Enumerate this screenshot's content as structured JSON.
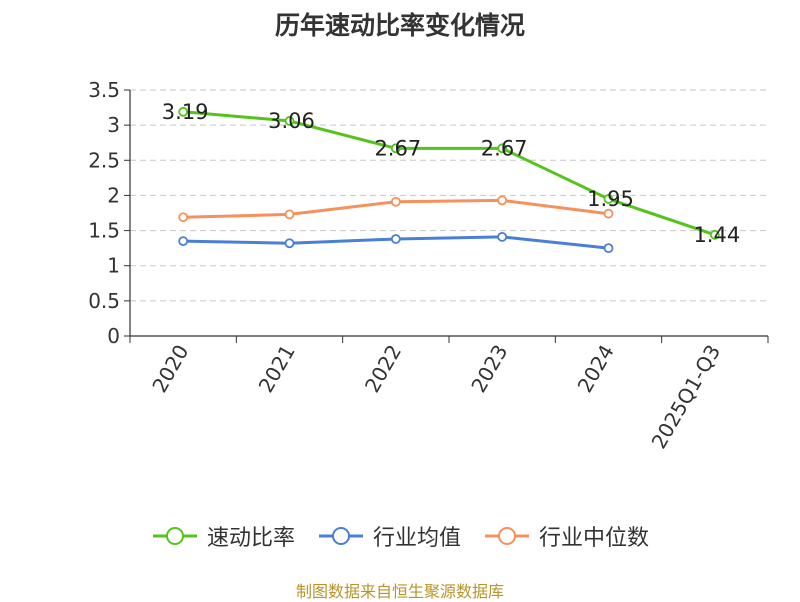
{
  "chart_data": {
    "type": "line",
    "title": "历年速动比率变化情况",
    "categories": [
      "2020",
      "2021",
      "2022",
      "2023",
      "2024",
      "2025Q1-Q3"
    ],
    "series": [
      {
        "name": "速动比率",
        "color": "#52c41a",
        "values": [
          3.19,
          3.06,
          2.67,
          2.67,
          1.95,
          1.44
        ],
        "labeled": true
      },
      {
        "name": "行业均值",
        "color": "#4a7fd6",
        "values": [
          1.35,
          1.32,
          1.38,
          1.41,
          1.25,
          null
        ],
        "labeled": false
      },
      {
        "name": "行业中位数",
        "color": "#f5915b",
        "values": [
          1.69,
          1.73,
          1.91,
          1.93,
          1.74,
          null
        ],
        "labeled": false
      }
    ],
    "yticks": [
      0,
      0.5,
      1,
      1.5,
      2,
      2.5,
      3,
      3.5
    ],
    "ylim": [
      0,
      3.5
    ],
    "grid": true,
    "legend_position": "bottom"
  },
  "source": "制图数据来自恒生聚源数据库"
}
